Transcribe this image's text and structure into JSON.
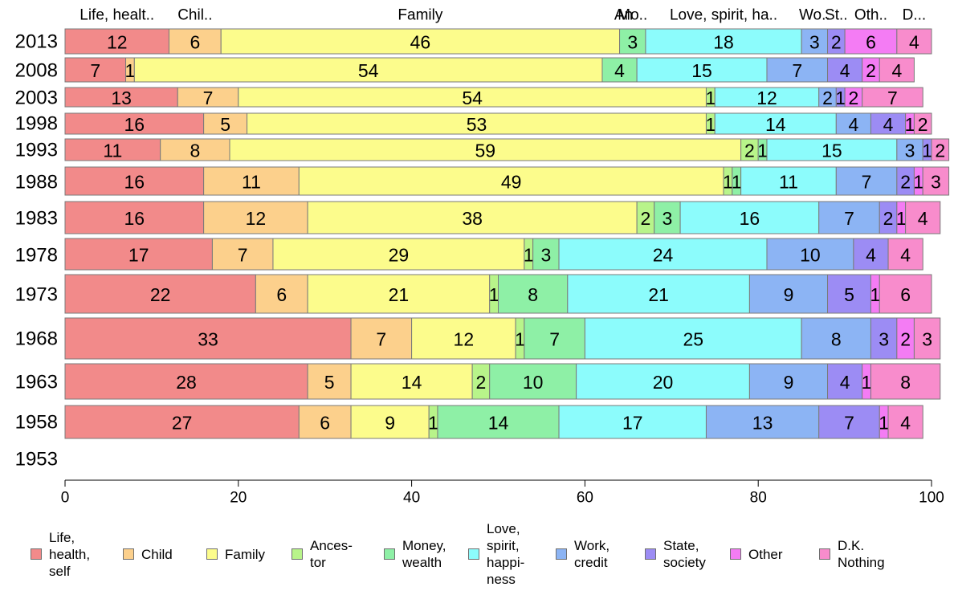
{
  "chart_data": {
    "type": "bar",
    "orientation": "horizontal",
    "stacked": true,
    "categories": [
      "2013",
      "2008",
      "2003",
      "1998",
      "1993",
      "1988",
      "1983",
      "1978",
      "1973",
      "1968",
      "1963",
      "1958",
      "1953"
    ],
    "segment_headers": [
      "Life, healt..",
      "Chil..",
      "Family",
      "An",
      "Mo..",
      "Love, spirit, ha..",
      "Wo..",
      "St..",
      "Oth..",
      "D..."
    ],
    "series": [
      {
        "name": "Life,\nhealth,\nself",
        "color": "#f28a8a",
        "values": [
          12,
          7,
          13,
          16,
          11,
          16,
          16,
          17,
          22,
          33,
          28,
          27,
          null
        ]
      },
      {
        "name": "Child",
        "color": "#fcd08c",
        "values": [
          6,
          1,
          7,
          5,
          8,
          11,
          12,
          7,
          6,
          7,
          5,
          6,
          null
        ]
      },
      {
        "name": "Family",
        "color": "#fcfc8c",
        "values": [
          46,
          54,
          54,
          53,
          59,
          49,
          38,
          29,
          21,
          12,
          14,
          9,
          null
        ]
      },
      {
        "name": "Ances-\ntor",
        "color": "#b8f48a",
        "values": [
          0,
          0,
          1,
          1,
          2,
          1,
          2,
          1,
          1,
          1,
          2,
          1,
          null
        ]
      },
      {
        "name": "Money,\nwealth",
        "color": "#8ef0a6",
        "values": [
          3,
          4,
          0,
          0,
          1,
          1,
          3,
          3,
          8,
          7,
          10,
          14,
          null
        ]
      },
      {
        "name": "Love,\nspirit,\nhappi-\nness",
        "color": "#8cfcfc",
        "values": [
          18,
          15,
          12,
          14,
          15,
          11,
          16,
          24,
          21,
          25,
          20,
          17,
          null
        ]
      },
      {
        "name": "Work,\ncredit",
        "color": "#8cb4f4",
        "values": [
          3,
          7,
          2,
          4,
          3,
          7,
          7,
          10,
          9,
          8,
          9,
          13,
          null
        ]
      },
      {
        "name": "State,\nsociety",
        "color": "#9c8cf4",
        "values": [
          2,
          4,
          1,
          4,
          1,
          2,
          2,
          4,
          5,
          3,
          4,
          7,
          null
        ]
      },
      {
        "name": "Other",
        "color": "#f47cf4",
        "values": [
          6,
          2,
          2,
          1,
          0,
          1,
          1,
          0,
          1,
          2,
          1,
          1,
          null
        ]
      },
      {
        "name": "D.K.\nNothing",
        "color": "#f88ccc",
        "values": [
          4,
          4,
          7,
          2,
          2,
          3,
          4,
          4,
          6,
          3,
          8,
          4,
          null
        ]
      }
    ],
    "xlim": [
      0,
      100
    ],
    "xticks": [
      "0",
      "20",
      "40",
      "60",
      "80",
      "100"
    ],
    "grid": false,
    "legend": "bottom"
  }
}
